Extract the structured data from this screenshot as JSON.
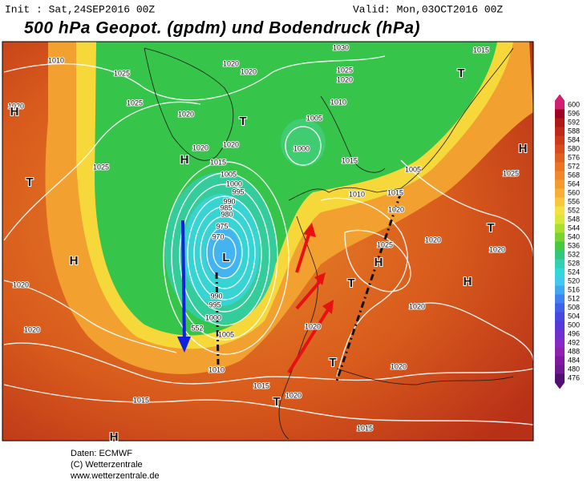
{
  "header": {
    "init": "Init : Sat,24SEP2016 00Z",
    "valid": "Valid: Mon,03OCT2016 00Z",
    "title": "500 hPa Geopot. (gpdm) und Bodendruck (hPa)"
  },
  "legend": {
    "labels": [
      "600",
      "596",
      "592",
      "588",
      "584",
      "580",
      "576",
      "572",
      "568",
      "564",
      "560",
      "556",
      "552",
      "548",
      "544",
      "540",
      "536",
      "532",
      "528",
      "524",
      "520",
      "516",
      "512",
      "508",
      "504",
      "500",
      "496",
      "492",
      "488",
      "484",
      "480",
      "476"
    ],
    "colors": [
      "#d0206f",
      "#a00020",
      "#b01818",
      "#c02818",
      "#cc3a1a",
      "#d84c1c",
      "#e0601e",
      "#e87424",
      "#ee882a",
      "#f29c30",
      "#f6b036",
      "#f8c83c",
      "#f4e040",
      "#d8e838",
      "#a8e030",
      "#78d430",
      "#48c840",
      "#30c880",
      "#30d0b0",
      "#30d8d8",
      "#40c8f0",
      "#40a8f0",
      "#4080f0",
      "#4060e8",
      "#4848e0",
      "#5838d8",
      "#7030d0",
      "#8828c8",
      "#9020b0",
      "#8018a0",
      "#701890",
      "#501070"
    ]
  },
  "map_labels": [
    "1010",
    "1025",
    "1020",
    "1020",
    "1030",
    "1025",
    "1020",
    "1015",
    "T",
    "1020",
    "H",
    "1025",
    "1020",
    "T",
    "1010",
    "1005",
    "1000",
    "1020",
    "1020",
    "H",
    "1015",
    "1025",
    "T",
    "1005",
    "1000",
    "995",
    "990",
    "985",
    "980",
    "975",
    "970",
    "L",
    "H",
    "1020",
    "990",
    "995",
    "1000",
    "1005",
    "552",
    "1020",
    "1010",
    "1015",
    "1010",
    "1015",
    "1005",
    "1020",
    "1025",
    "H",
    "1020",
    "1020",
    "T",
    "H",
    "1025",
    "H",
    "T",
    "1020",
    "1020",
    "T",
    "1020",
    "1015",
    "1020",
    "T",
    "1015",
    "1015",
    "H"
  ],
  "footer": [
    "Daten: ECMWF",
    "(C) Wetterzentrale",
    "www.wetterzentrale.de"
  ]
}
